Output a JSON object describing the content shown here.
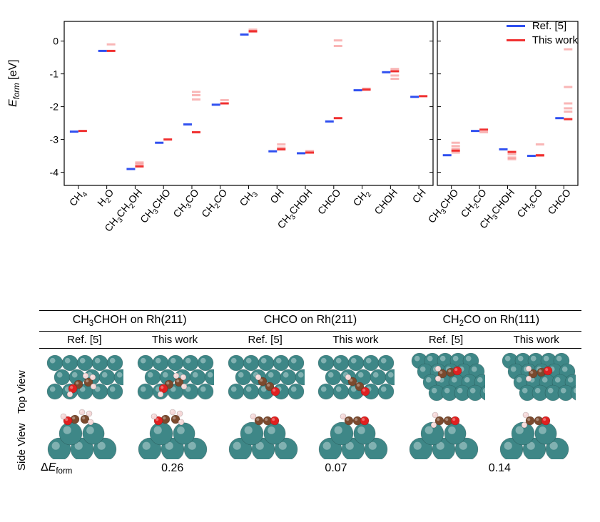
{
  "chart": {
    "type": "scatter-tick",
    "ylabel_html": "E<sub>form</sub> <span class='unit'>[eV]</span>",
    "ylim": [
      -4.4,
      0.6
    ],
    "ytick_step": 1,
    "yticks": [
      -4,
      -3,
      -2,
      -1,
      0
    ],
    "background_color": "#ffffff",
    "axis_color": "#000000",
    "ref_color": "#3050f0",
    "thiswork_color": "#f03030",
    "thiswork_alpha_secondary": 0.35,
    "tick_marker_width": 24,
    "tick_marker_height": 3,
    "tick_fontsize": 14,
    "label_fontsize": 16,
    "left_panel": {
      "categories": [
        "CH4",
        "H2O",
        "CH3CH2OH",
        "CH3CHO",
        "CH3CO",
        "CH2CO",
        "CH3",
        "OH",
        "CH3CHOH",
        "CHCO",
        "CH2",
        "CHOH",
        "CH"
      ],
      "categories_html": [
        "CH<sub>4</sub>",
        "H<sub>2</sub>O",
        "CH<sub>3</sub>CH<sub>2</sub>OH",
        "CH<sub>3</sub>CHO",
        "CH<sub>3</sub>CO",
        "CH<sub>2</sub>CO",
        "CH<sub>3</sub>",
        "OH",
        "CH<sub>3</sub>CHOH",
        "CHCO",
        "CH<sub>2</sub>",
        "CHOH",
        "CH"
      ],
      "ref_values": [
        -2.76,
        -0.3,
        -3.9,
        -3.1,
        -2.54,
        -1.94,
        0.2,
        -3.36,
        -3.42,
        -2.45,
        -1.5,
        -0.95,
        -1.7
      ],
      "thiswork_primary": [
        -2.74,
        -0.3,
        -3.82,
        -3.0,
        -2.78,
        -1.9,
        0.3,
        -3.3,
        -3.4,
        -2.35,
        -1.48,
        -0.92,
        -1.68
      ],
      "thiswork_secondary": [
        [],
        [
          -0.1
        ],
        [
          -3.7,
          -3.75
        ],
        [],
        [
          -1.55,
          -1.65,
          -1.78
        ],
        [
          -1.8
        ],
        [
          0.35,
          0.28
        ],
        [
          -3.25,
          -3.15
        ],
        [
          -3.35
        ],
        [
          0.02,
          -0.15
        ],
        [
          -1.45
        ],
        [
          -0.85,
          -1.05,
          -1.15
        ],
        []
      ]
    },
    "right_panel": {
      "categories": [
        "CH3CHO",
        "CH2CO",
        "CH3CHOH",
        "CH3CO",
        "CHCO"
      ],
      "categories_html": [
        "CH<sub>3</sub>CHO",
        "CH<sub>2</sub>CO",
        "CH<sub>3</sub>CHOH",
        "CH<sub>3</sub>CO",
        "CHCO"
      ],
      "ref_values": [
        -3.48,
        -2.74,
        -3.3,
        -3.5,
        -2.35
      ],
      "thiswork_primary": [
        -3.34,
        -2.7,
        -3.38,
        -3.48,
        -2.38
      ],
      "thiswork_secondary": [
        [
          -3.1,
          -3.2,
          -3.28,
          -3.4
        ],
        [
          -2.78
        ],
        [
          -3.45,
          -3.55,
          -3.6
        ],
        [
          -3.15,
          -3.5
        ],
        [
          -0.25,
          -1.4,
          -1.9,
          -2.05,
          -2.15
        ]
      ]
    },
    "legend": {
      "items": [
        {
          "label": "Ref. [5]",
          "color": "#3050f0"
        },
        {
          "label": "This work",
          "color": "#f03030"
        }
      ],
      "fontsize": 15
    }
  },
  "structures": {
    "atom_colors": {
      "Rh": "#3e8787",
      "C": "#7b4a2e",
      "O": "#e02020",
      "H": "#f5d8d8"
    },
    "row_label_top": "Top View",
    "row_label_side": "Side View",
    "dE_label_html": "Δ<i>E</i><sub>form</sub>",
    "systems": [
      {
        "title_html": "CH<sub>3</sub>CHOH on Rh(211)",
        "dE": "0.26"
      },
      {
        "title_html": "CHCO on Rh(211)",
        "dE": "0.07"
      },
      {
        "title_html": "CH<sub>2</sub>CO on Rh(111)",
        "dE": "0.14"
      }
    ],
    "columns": [
      "Ref. [5]",
      "This work"
    ],
    "title_fontsize": 16,
    "col_fontsize": 15
  }
}
